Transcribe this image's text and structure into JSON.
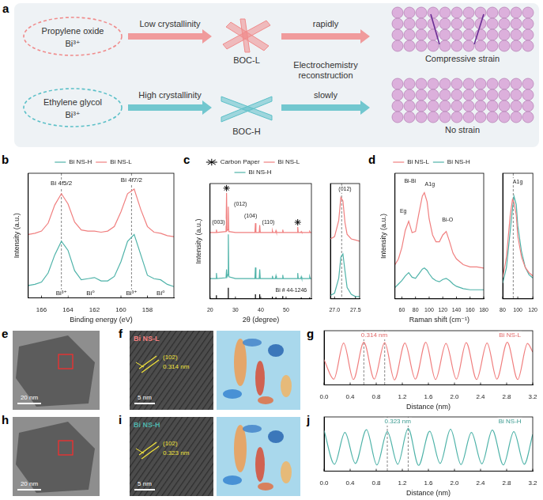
{
  "diagram": {
    "letter": "a",
    "routes": [
      {
        "precursor": "Propylene oxide",
        "ion": "Bi³⁺",
        "crystallinity": "Low crystallinity",
        "product": "BOC-L",
        "speed": "rapidly",
        "result": "Compressive strain",
        "color": "#f08c8c"
      },
      {
        "precursor": "Ethylene glycol",
        "ion": "Bi³⁺",
        "crystallinity": "High crystallinity",
        "product": "BOC-H",
        "speed": "slowly",
        "result": "No strain",
        "color": "#5cc0c8"
      }
    ],
    "process": "Electrochemistry reconstruction"
  },
  "images": [
    {
      "letter": "e",
      "scale_bar": "20 nm"
    },
    {
      "letter": "f",
      "label": "Bi NS-L",
      "color": "#f07f7f",
      "plane": "(102)",
      "spacing": "0.314 nm",
      "scale_bar": "5 nm"
    },
    {
      "letter": "h",
      "scale_bar": "20 nm"
    },
    {
      "letter": "i",
      "label": "Bi NS-H",
      "color": "#4fb3a9",
      "plane": "(102)",
      "spacing": "0.323 nm",
      "scale_bar": "5 nm"
    }
  ],
  "chart_data": [
    {
      "letter": "b",
      "type": "line",
      "x_label": "Binding energy (eV)",
      "y_label": "Intensity (a.u.)",
      "xlim": [
        167,
        156
      ],
      "xticks": [
        166,
        164,
        162,
        160,
        158
      ],
      "ylim": [
        0,
        11
      ],
      "tick_labels": "x",
      "grid": false,
      "legend": "top",
      "series": [
        {
          "name": "Bi NS-H",
          "color": "#4fb3a9",
          "x": [
            167,
            166.5,
            166,
            165.5,
            165,
            164.5,
            164,
            163.5,
            163,
            162.5,
            162,
            161.5,
            161,
            160.5,
            160,
            159.5,
            159,
            158.5,
            158,
            157.5,
            157,
            156.5,
            156
          ],
          "values": [
            1.1,
            1.2,
            1.4,
            2.2,
            3.8,
            5.0,
            4.2,
            2.4,
            1.6,
            1.7,
            1.8,
            1.5,
            1.5,
            1.9,
            3.2,
            5.0,
            5.6,
            3.8,
            2.0,
            1.7,
            1.6,
            1.2,
            1.0
          ]
        },
        {
          "name": "Bi NS-L",
          "color": "#f07f7f",
          "x": [
            167,
            166.5,
            166,
            165.5,
            165,
            164.5,
            164,
            163.5,
            163,
            162.5,
            162,
            161.5,
            161,
            160.5,
            160,
            159.5,
            159,
            158.5,
            158,
            157.5,
            157,
            156.5,
            156
          ],
          "values": [
            5.6,
            5.7,
            5.9,
            6.6,
            8.2,
            9.2,
            8.3,
            6.7,
            6.0,
            5.9,
            5.9,
            5.8,
            5.9,
            6.3,
            7.6,
            9.2,
            9.6,
            7.8,
            6.3,
            5.8,
            5.7,
            5.5,
            5.4
          ]
        }
      ],
      "vlines": [
        164.5,
        159.2
      ],
      "annotations": [
        {
          "text": "Bi 4f5/2",
          "x": 164.5,
          "y": 10.1
        },
        {
          "text": "Bi 4f7/2",
          "x": 159.2,
          "y": 10.4
        },
        {
          "text": "Bi³⁺",
          "x": 164.5,
          "y": 0.4
        },
        {
          "text": "Bi⁰",
          "x": 162.3,
          "y": 0.4
        },
        {
          "text": "Bi³⁺",
          "x": 159.2,
          "y": 0.4
        },
        {
          "text": "Bi⁰",
          "x": 157.0,
          "y": 0.4
        }
      ]
    },
    {
      "letter": "c",
      "type": "line",
      "x_label": "2θ (degree)",
      "y_label": "Intensity (a.u.)",
      "xlim": [
        20,
        60
      ],
      "xticks": [
        20,
        30,
        40,
        50
      ],
      "ylim": [
        0,
        12.5
      ],
      "tick_labels": "x",
      "grid": false,
      "legend": "top",
      "series": [
        {
          "name": "Carbon Paper",
          "type": "scatter",
          "marker": "star",
          "color": "#000000",
          "x": [
            26.5,
            54.6
          ],
          "values": [
            12.0,
            8.3
          ]
        },
        {
          "name": "Bi NS-L",
          "color": "#f07f7f",
          "x": [
            20,
            22.3,
            22.5,
            22.7,
            26.3,
            26.5,
            26.7,
            27.0,
            27.2,
            27.4,
            30,
            37.7,
            37.9,
            38.1,
            39.4,
            39.6,
            39.8,
            44.4,
            44.6,
            44.8,
            45.8,
            46.0,
            46.2,
            48.5,
            48.7,
            48.9,
            54.4,
            54.6,
            54.8,
            55.8,
            56.0,
            56.2,
            59.1,
            59.3,
            59.5,
            60
          ],
          "values": [
            7.2,
            7.2,
            7.5,
            7.2,
            7.3,
            11.5,
            7.4,
            7.5,
            10.0,
            7.3,
            7.2,
            7.2,
            8.2,
            7.2,
            7.2,
            8.0,
            7.2,
            7.2,
            7.4,
            7.2,
            7.2,
            7.4,
            7.2,
            7.2,
            7.5,
            7.2,
            7.2,
            7.8,
            7.2,
            7.2,
            7.3,
            7.2,
            7.2,
            7.3,
            7.2,
            7.2
          ]
        },
        {
          "name": "Bi NS-H",
          "color": "#4fb3a9",
          "x": [
            20,
            22.3,
            22.5,
            22.7,
            26.3,
            26.5,
            26.7,
            27.0,
            27.2,
            27.4,
            30,
            37.7,
            37.9,
            38.1,
            39.4,
            39.6,
            39.8,
            44.4,
            44.6,
            44.8,
            45.8,
            46.0,
            46.2,
            48.5,
            48.7,
            48.9,
            54.4,
            54.6,
            54.8,
            55.8,
            56.0,
            56.2,
            59.1,
            59.3,
            59.5,
            60
          ],
          "values": [
            2.2,
            2.2,
            2.8,
            2.2,
            2.3,
            3.2,
            2.4,
            2.6,
            7.0,
            2.4,
            2.2,
            2.2,
            3.4,
            2.2,
            2.2,
            3.2,
            2.2,
            2.2,
            2.5,
            2.2,
            2.2,
            2.5,
            2.2,
            2.2,
            2.6,
            2.2,
            2.2,
            2.8,
            2.2,
            2.2,
            2.4,
            2.2,
            2.2,
            2.4,
            2.2,
            2.2
          ]
        }
      ],
      "reference": {
        "color": "#000000",
        "x": [
          22.5,
          27.2,
          37.9,
          39.6,
          44.6,
          46.0,
          48.7,
          56.0,
          59.3
        ],
        "values": [
          0.4,
          1.2,
          0.5,
          0.5,
          0.25,
          0.2,
          0.3,
          0.15,
          0.15
        ]
      },
      "annotations": [
        {
          "text": "(003)",
          "x": 23.3,
          "y": 8.3
        },
        {
          "text": "(012)",
          "x": 32,
          "y": 10.3
        },
        {
          "text": "(104)",
          "x": 36,
          "y": 9.0
        },
        {
          "text": "(110)",
          "x": 43,
          "y": 8.3
        },
        {
          "text": "Bi # 44-1246",
          "x": 52,
          "y": 0.9
        }
      ],
      "inset": {
        "type": "line",
        "xlim": [
          26.9,
          27.6
        ],
        "xticks": [
          {
            "value": 27,
            "label": "27.0"
          },
          27.5
        ],
        "ylim": [
          0,
          10
        ],
        "tick_labels": "x",
        "grid": false,
        "vlines": [
          27.17
        ],
        "annotations": [
          {
            "text": "(012)",
            "x": 27.25,
            "y": 9.5
          }
        ],
        "series": [
          {
            "color": "#f07f7f",
            "x": [
              26.9,
              27.0,
              27.1,
              27.15,
              27.2,
              27.25,
              27.3,
              27.4,
              27.5,
              27.6
            ],
            "values": [
              5.2,
              5.4,
              6.8,
              8.8,
              8.5,
              6.6,
              5.6,
              5.2,
              5.1,
              5.0
            ]
          },
          {
            "color": "#4fb3a9",
            "x": [
              26.9,
              27.0,
              27.1,
              27.15,
              27.2,
              27.25,
              27.3,
              27.4,
              27.5,
              27.6
            ],
            "values": [
              0.3,
              0.5,
              1.8,
              3.6,
              3.9,
              2.4,
              1.0,
              0.4,
              0.2,
              0.2
            ]
          }
        ]
      }
    },
    {
      "letter": "d",
      "type": "line",
      "x_label": "Raman shift (cm⁻¹)",
      "y_label": "Intensity (a.u.)",
      "xlim": [
        50,
        180
      ],
      "xticks": [
        60,
        80,
        100,
        120,
        140,
        160,
        180
      ],
      "ylim": [
        0,
        11
      ],
      "tick_labels": "x",
      "grid": false,
      "legend": "top",
      "series": [
        {
          "name": "Bi NS-L",
          "color": "#f07f7f",
          "x": [
            50,
            55,
            60,
            65,
            70,
            75,
            80,
            85,
            90,
            93,
            97,
            100,
            105,
            110,
            115,
            120,
            125,
            130,
            135,
            140,
            150,
            160,
            170,
            180
          ],
          "values": [
            3.0,
            3.5,
            4.5,
            6.0,
            6.8,
            5.8,
            5.9,
            7.5,
            9.0,
            9.3,
            8.5,
            7.0,
            5.6,
            5.0,
            5.0,
            5.6,
            5.9,
            5.0,
            4.0,
            3.5,
            3.0,
            2.8,
            2.8,
            2.7
          ]
        },
        {
          "name": "Bi NS-H",
          "color": "#4fb3a9",
          "x": [
            50,
            55,
            60,
            65,
            70,
            75,
            80,
            85,
            90,
            93,
            97,
            100,
            105,
            110,
            115,
            120,
            125,
            130,
            135,
            140,
            150,
            160,
            170,
            180
          ],
          "values": [
            1.0,
            1.3,
            1.6,
            2.0,
            2.3,
            1.9,
            1.8,
            2.2,
            2.6,
            2.7,
            2.5,
            2.2,
            1.8,
            1.6,
            1.5,
            1.7,
            1.8,
            1.6,
            1.3,
            1.1,
            0.9,
            0.8,
            0.8,
            0.8
          ]
        }
      ],
      "annotations": [
        {
          "text": "Bi-Bi",
          "x": 72,
          "y": 10.3
        },
        {
          "text": "Eg",
          "x": 62,
          "y": 7.7
        },
        {
          "text": "A1g",
          "x": 101,
          "y": 10.0
        },
        {
          "text": "Bi-O",
          "x": 127,
          "y": 6.9
        }
      ],
      "inset": {
        "type": "line",
        "xlim": [
          80,
          120
        ],
        "xticks": [
          80,
          100,
          120
        ],
        "ylim": [
          0,
          12
        ],
        "tick_labels": "x",
        "grid": false,
        "vlines": [
          94
        ],
        "annotations": [
          {
            "text": "A1g",
            "x": 100,
            "y": 11.2
          }
        ],
        "series": [
          {
            "color": "#f07f7f",
            "x": [
              80,
              85,
              90,
              93,
              95,
              98,
              100,
              105,
              110,
              115,
              120
            ],
            "values": [
              2.0,
              4.0,
              8.0,
              9.5,
              9.2,
              8.0,
              6.0,
              4.0,
              3.0,
              2.5,
              2.2
            ]
          },
          {
            "color": "#4fb3a9",
            "x": [
              80,
              85,
              90,
              93,
              95,
              98,
              100,
              105,
              110,
              115,
              120
            ],
            "values": [
              1.5,
              3.0,
              6.5,
              8.6,
              9.8,
              9.0,
              7.0,
              4.5,
              3.0,
              2.3,
              2.0
            ]
          }
        ]
      }
    },
    {
      "letter": "g",
      "type": "line",
      "x_label": "Distance (nm)",
      "xlim": [
        0,
        3.2
      ],
      "xticks": [
        {
          "value": 0,
          "label": "0.0"
        },
        0.4,
        0.8,
        1.2,
        1.6,
        {
          "value": 2,
          "label": "2.0"
        },
        2.4,
        2.8,
        3.2
      ],
      "ylim": [
        -0.1,
        1.3
      ],
      "tick_labels": "x",
      "grid": false,
      "series": [
        {
          "color": "#f07f7f",
          "x": [
            0,
            0.15,
            0.3,
            0.45,
            0.61,
            0.77,
            0.93,
            1.08,
            1.24,
            1.4,
            1.56,
            1.71,
            1.87,
            2.03,
            2.18,
            2.34,
            2.5,
            2.65,
            2.81,
            2.97,
            3.12,
            3.2
          ],
          "values": [
            0.55,
            0.05,
            0.98,
            0.04,
            1.0,
            0.05,
            0.99,
            0.03,
            0.98,
            0.05,
            1.0,
            0.04,
            0.97,
            0.05,
            0.99,
            0.04,
            0.98,
            0.05,
            1.0,
            0.04,
            0.97,
            0.75
          ]
        }
      ],
      "vlines": [
        0.61,
        0.93
      ],
      "annotations": [
        {
          "text": "0.314 nm",
          "x": 0.77,
          "y": 1.18,
          "color": "#e06666"
        },
        {
          "text": "Bi NS-L",
          "x": 2.85,
          "y": 1.18,
          "color": "#e06666"
        }
      ]
    },
    {
      "letter": "j",
      "type": "line",
      "x_label": "Distance (nm)",
      "xlim": [
        0,
        3.2
      ],
      "xticks": [
        {
          "value": 0,
          "label": "0.0"
        },
        0.4,
        0.8,
        1.2,
        1.6,
        {
          "value": 2,
          "label": "2.0"
        },
        2.4,
        2.8,
        3.2
      ],
      "ylim": [
        -0.1,
        1.3
      ],
      "tick_labels": "x",
      "grid": false,
      "series": [
        {
          "color": "#4fb3a9",
          "x": [
            0,
            0.16,
            0.32,
            0.48,
            0.65,
            0.81,
            0.97,
            1.13,
            1.29,
            1.45,
            1.62,
            1.78,
            1.94,
            2.1,
            2.26,
            2.42,
            2.58,
            2.75,
            2.91,
            3.07,
            3.2
          ],
          "values": [
            0.95,
            0.08,
            0.9,
            0.1,
            0.97,
            0.06,
            0.92,
            0.08,
            1.0,
            0.05,
            0.93,
            0.1,
            0.98,
            0.07,
            0.9,
            0.09,
            0.96,
            0.06,
            0.92,
            0.08,
            0.85
          ]
        }
      ],
      "vlines": [
        0.97,
        1.29
      ],
      "annotations": [
        {
          "text": "0.323 nm",
          "x": 1.13,
          "y": 1.18,
          "color": "#3a9a90"
        },
        {
          "text": "Bi NS-H",
          "x": 2.85,
          "y": 1.18,
          "color": "#3a9a90"
        }
      ]
    }
  ]
}
